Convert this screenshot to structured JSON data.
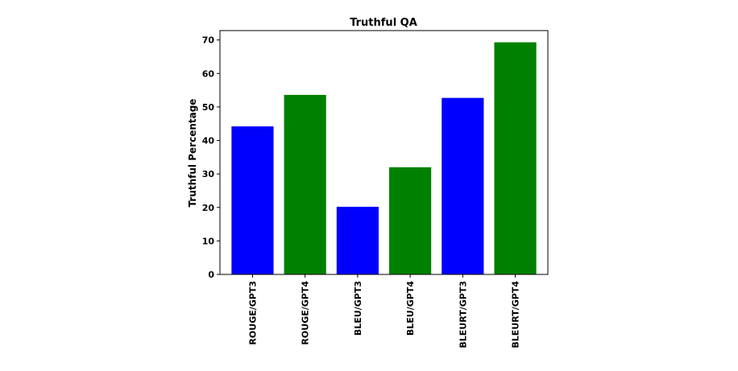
{
  "chart_data": {
    "type": "bar",
    "title": "Truthful QA",
    "xlabel": "",
    "ylabel": "Truthful Percentage",
    "categories": [
      "ROUGE/GPT3",
      "ROUGE/GPT4",
      "BLEU/GPT3",
      "BLEU/GPT4",
      "BLEURT/GPT3",
      "BLEURT/GPT4"
    ],
    "values": [
      44.2,
      53.6,
      20.2,
      32.0,
      52.7,
      69.3
    ],
    "colors": [
      "#0000ff",
      "#008000",
      "#0000ff",
      "#008000",
      "#0000ff",
      "#008000"
    ],
    "yticks": [
      "0",
      "10",
      "20",
      "30",
      "40",
      "50",
      "60",
      "70"
    ],
    "ylim": [
      0,
      72.8
    ],
    "grid": false,
    "legend": "none"
  }
}
